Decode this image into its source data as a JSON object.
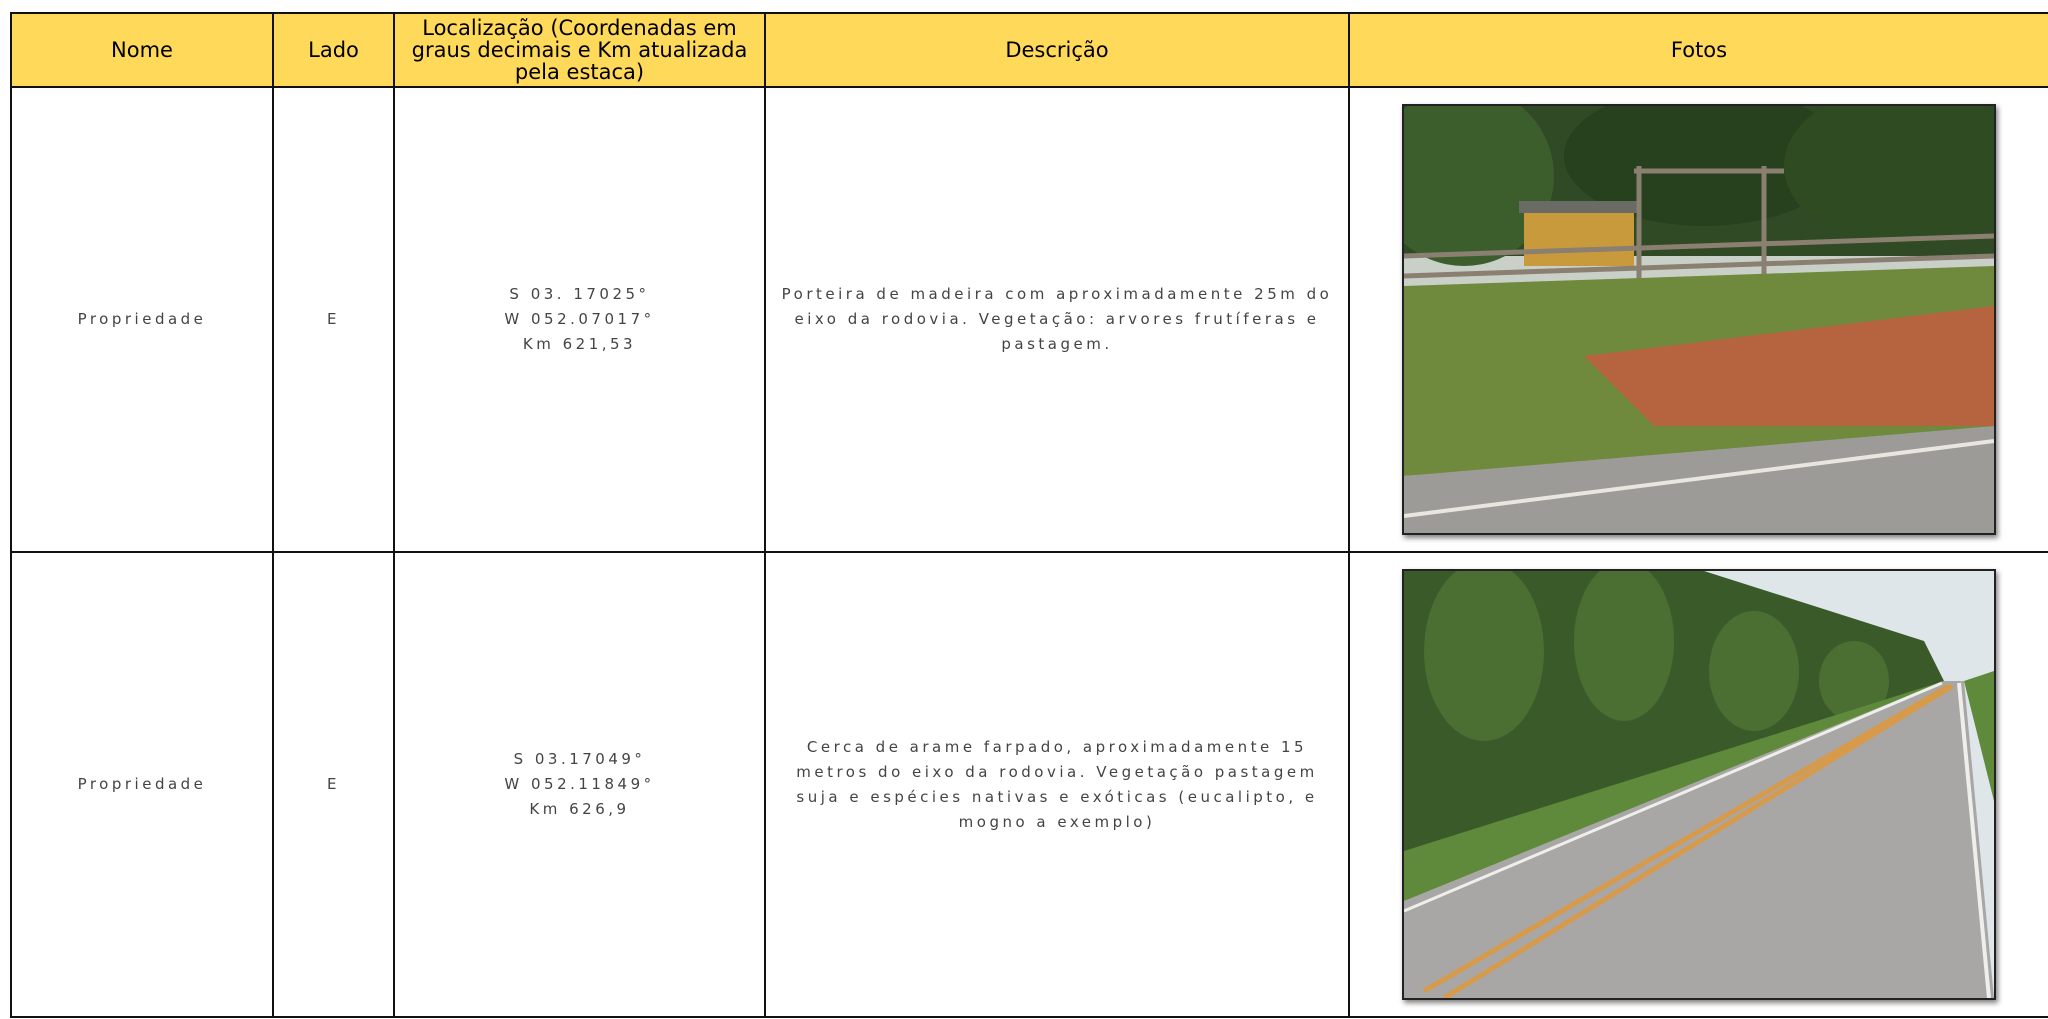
{
  "table": {
    "header": [
      "Nome",
      "Lado",
      "Localização (Coordenadas em graus decimais e Km atualizada pela estaca)",
      "Descrição",
      "Fotos"
    ],
    "rows": [
      {
        "nome": "Propriedade",
        "lado": "E",
        "localizacao": [
          "S 03. 17025°",
          "W 052.07017°",
          "Km 621,53"
        ],
        "descricao": "Porteira de madeira com aproximadamente 25m do eixo da rodovia. Vegetação: arvores frutíferas e pastagem."
      },
      {
        "nome": "Propriedade",
        "lado": "E",
        "localizacao": [
          "S 03.17049°",
          "W 052.11849°",
          "Km 626,9"
        ],
        "descricao": "Cerca de arame farpado, aproximadamente 15 metros do eixo da rodovia. Vegetação pastagem suja e espécies nativas e exóticas (eucalipto, e mogno a exemplo)"
      }
    ]
  }
}
